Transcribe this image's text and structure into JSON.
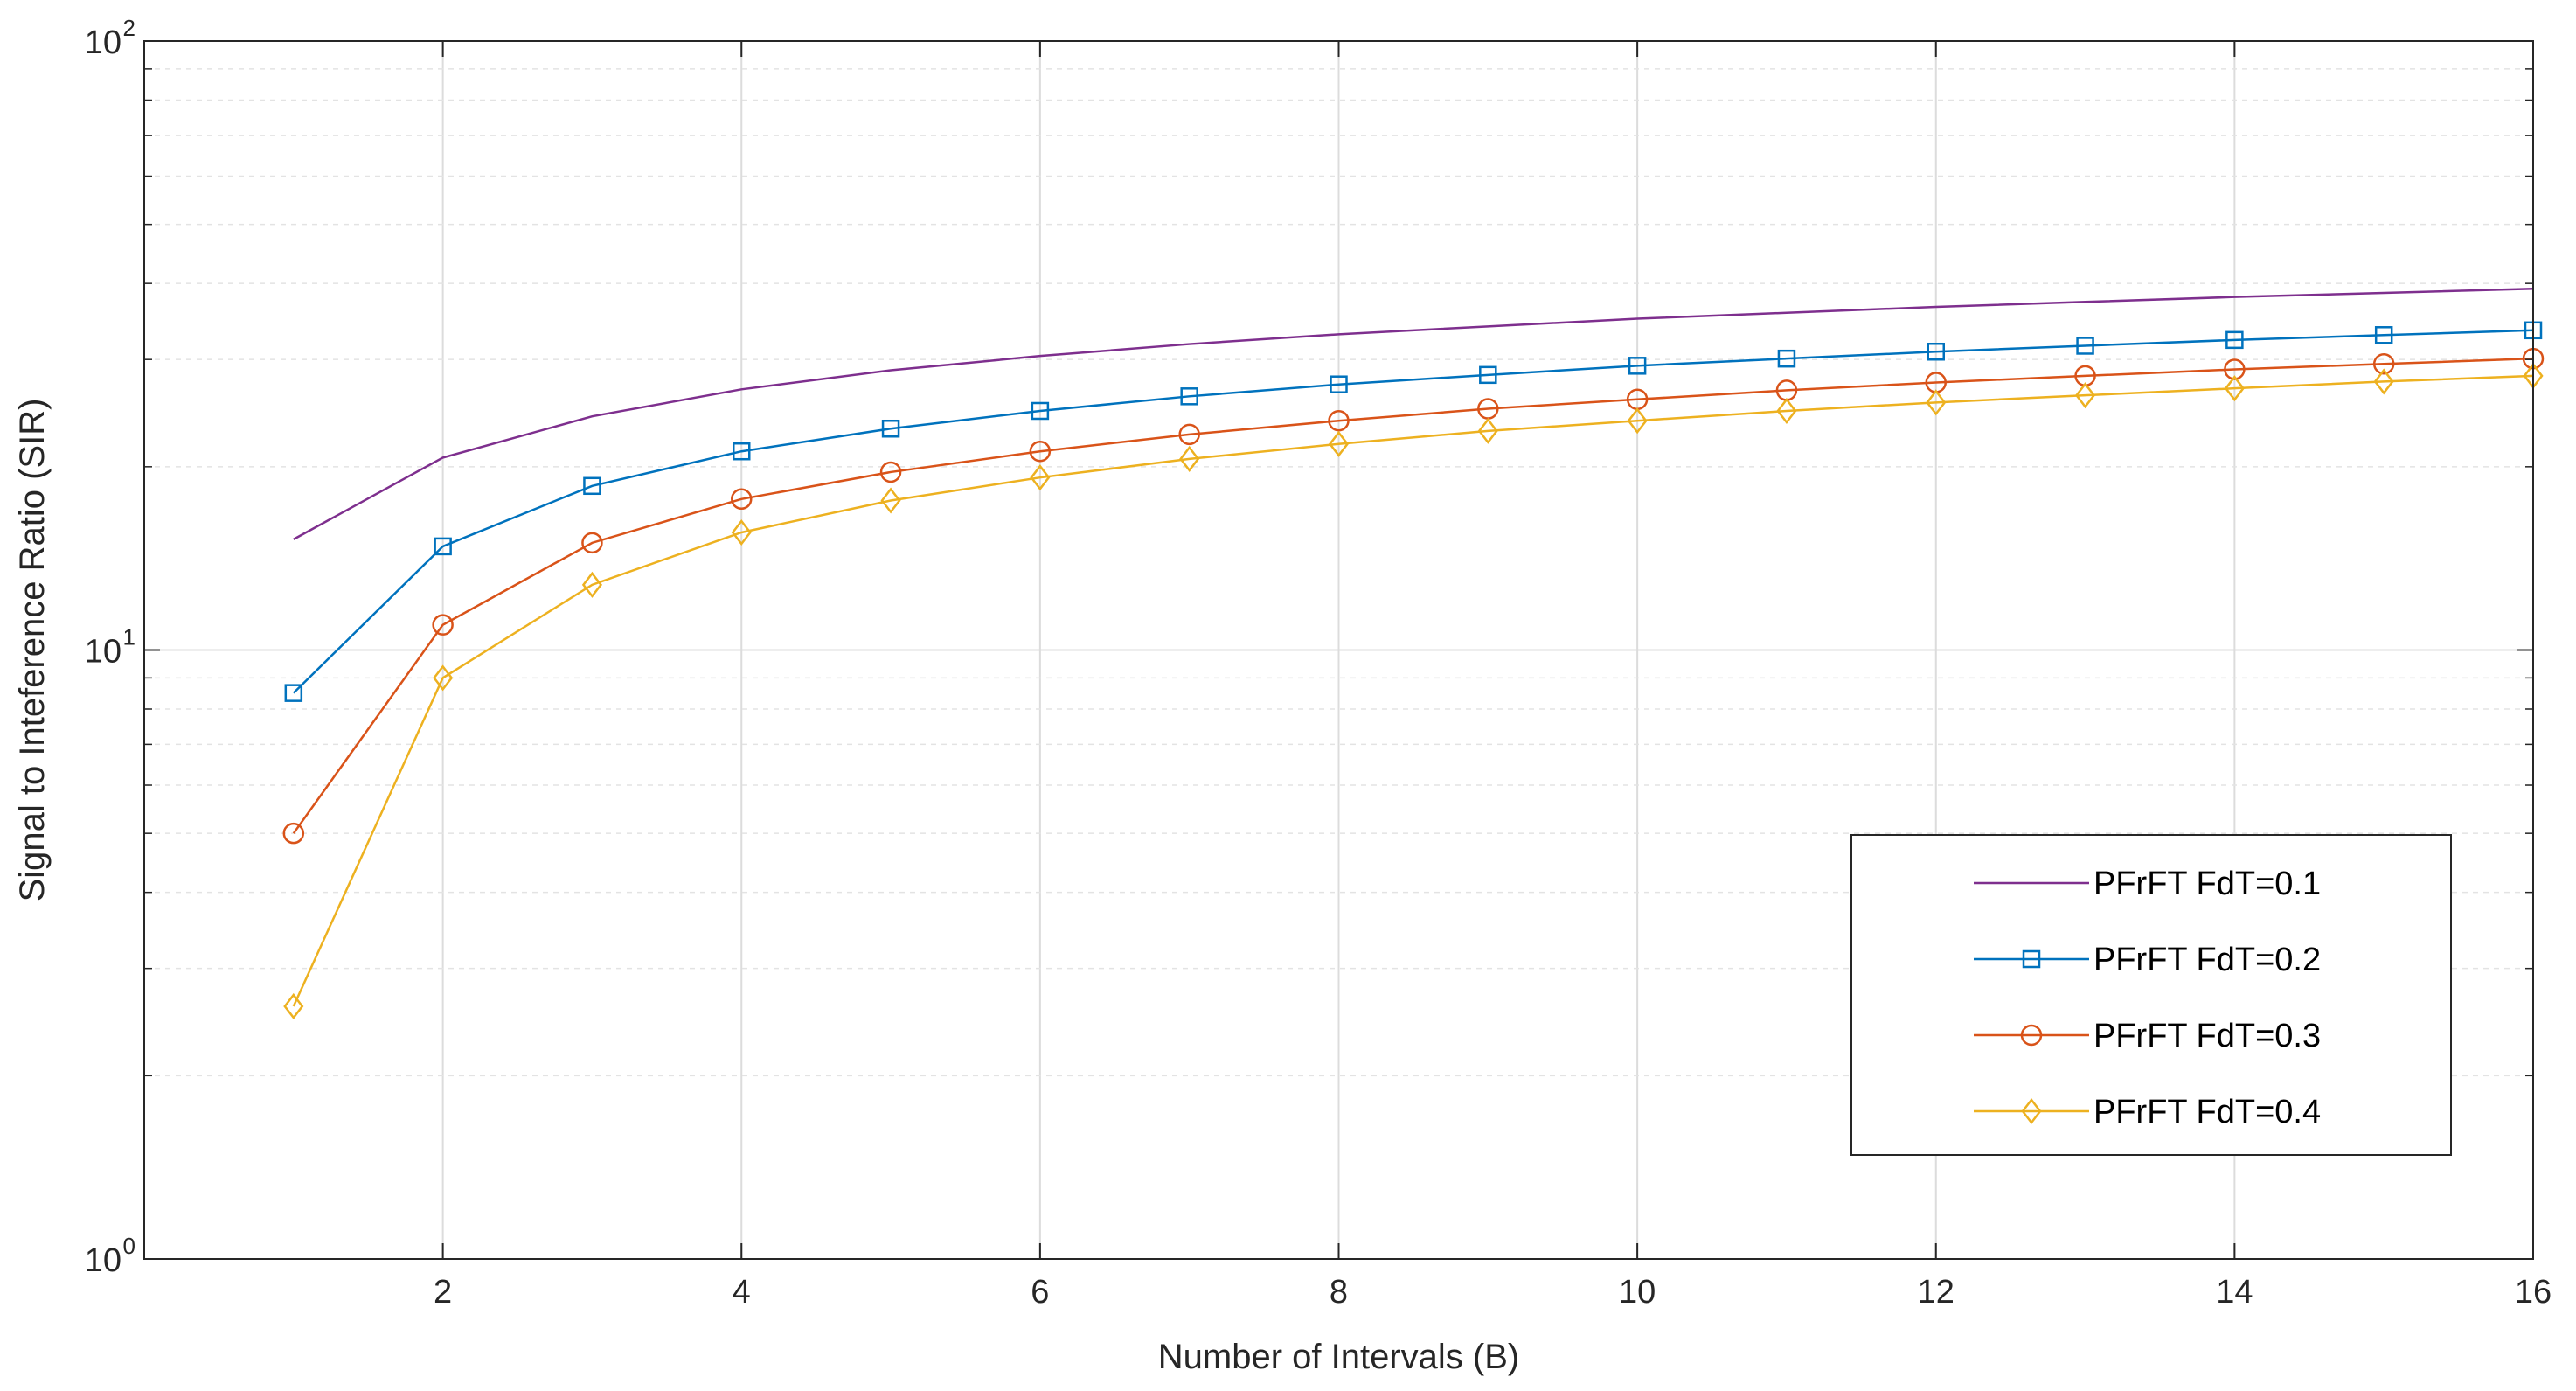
{
  "chart_data": {
    "type": "line",
    "title": "",
    "xlabel": "Number of Intervals (B)",
    "ylabel": "Signal to Inteference Ratio (SIR)",
    "yscale": "log",
    "xlim": [
      0,
      16
    ],
    "ylim": [
      1,
      100
    ],
    "xticks": [
      2,
      4,
      6,
      8,
      10,
      12,
      14,
      16
    ],
    "xtick_labels": [
      "2",
      "4",
      "6",
      "8",
      "10",
      "12",
      "14",
      "16"
    ],
    "yticks": [
      {
        "value": 1,
        "base": "10",
        "exp": "0"
      },
      {
        "value": 10,
        "base": "10",
        "exp": "1"
      },
      {
        "value": 100,
        "base": "10",
        "exp": "2"
      }
    ],
    "grid": true,
    "legend_position": "lower-right",
    "x": [
      1,
      2,
      3,
      4,
      5,
      6,
      7,
      8,
      9,
      10,
      11,
      12,
      13,
      14,
      15,
      16
    ],
    "series": [
      {
        "name": "PFrFT FdT=0.1",
        "color": "#7E2F8E",
        "marker": "none",
        "values": [
          15.2,
          20.7,
          24.2,
          26.8,
          28.8,
          30.4,
          31.8,
          33.0,
          34.0,
          35.0,
          35.8,
          36.6,
          37.3,
          38.0,
          38.6,
          39.2
        ]
      },
      {
        "name": "PFrFT FdT=0.2",
        "color": "#0072BD",
        "marker": "square",
        "values": [
          8.5,
          14.8,
          18.6,
          21.2,
          23.1,
          24.7,
          26.1,
          27.3,
          28.3,
          29.3,
          30.1,
          30.9,
          31.6,
          32.3,
          32.9,
          33.5
        ]
      },
      {
        "name": "PFrFT FdT=0.3",
        "color": "#D95319",
        "marker": "circle",
        "values": [
          5.0,
          11.0,
          15.0,
          17.7,
          19.6,
          21.2,
          22.6,
          23.8,
          24.9,
          25.8,
          26.7,
          27.5,
          28.2,
          28.9,
          29.5,
          30.1
        ]
      },
      {
        "name": "PFrFT FdT=0.4",
        "color": "#EDB120",
        "marker": "diamond",
        "values": [
          2.6,
          9.0,
          12.8,
          15.6,
          17.6,
          19.2,
          20.6,
          21.8,
          22.9,
          23.8,
          24.7,
          25.5,
          26.2,
          26.9,
          27.6,
          28.2
        ]
      }
    ]
  }
}
